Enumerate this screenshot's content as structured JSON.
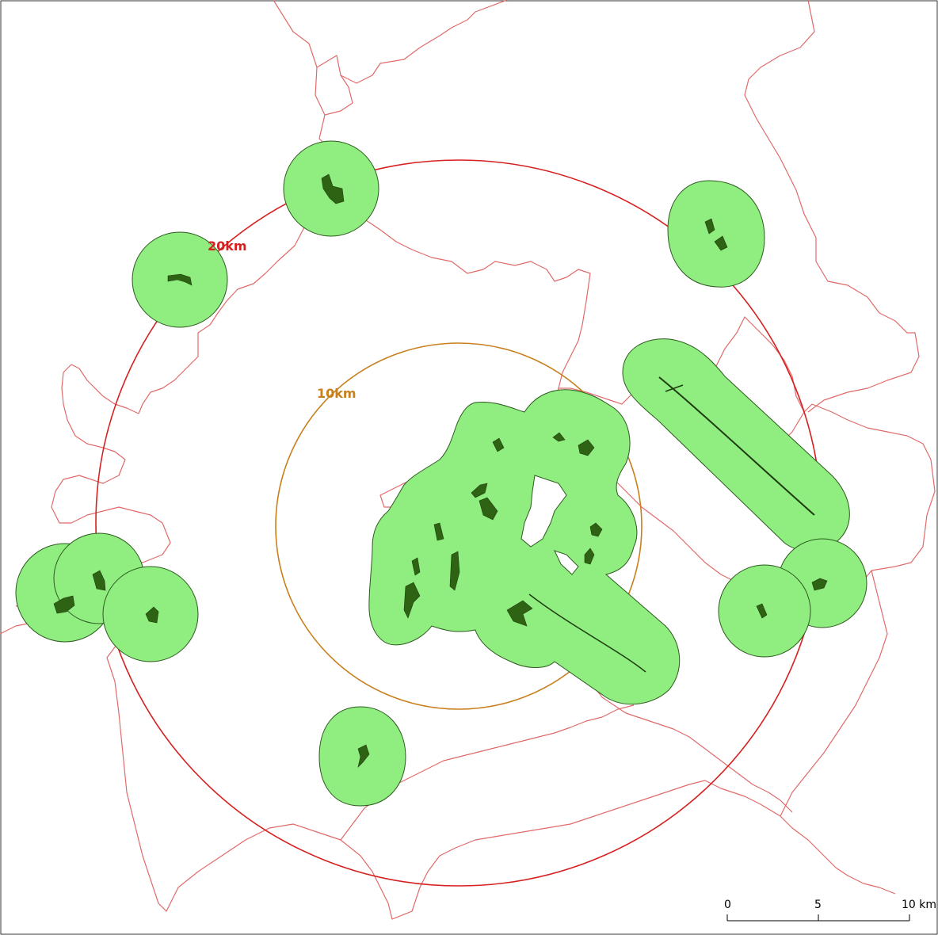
{
  "colors": {
    "buffer_fill": "#90ee80",
    "buffer_stroke": "#2d5a1f",
    "patch_fill": "#2f6314",
    "boundary": "#e06a6a",
    "ring_20km": "#d62020",
    "ring_10km": "#c8801e"
  },
  "rings": {
    "outer_label": "20km",
    "inner_label": "10km"
  },
  "scale_bar": {
    "tick_0": "0",
    "tick_5": "5",
    "tick_10": "10 km"
  }
}
